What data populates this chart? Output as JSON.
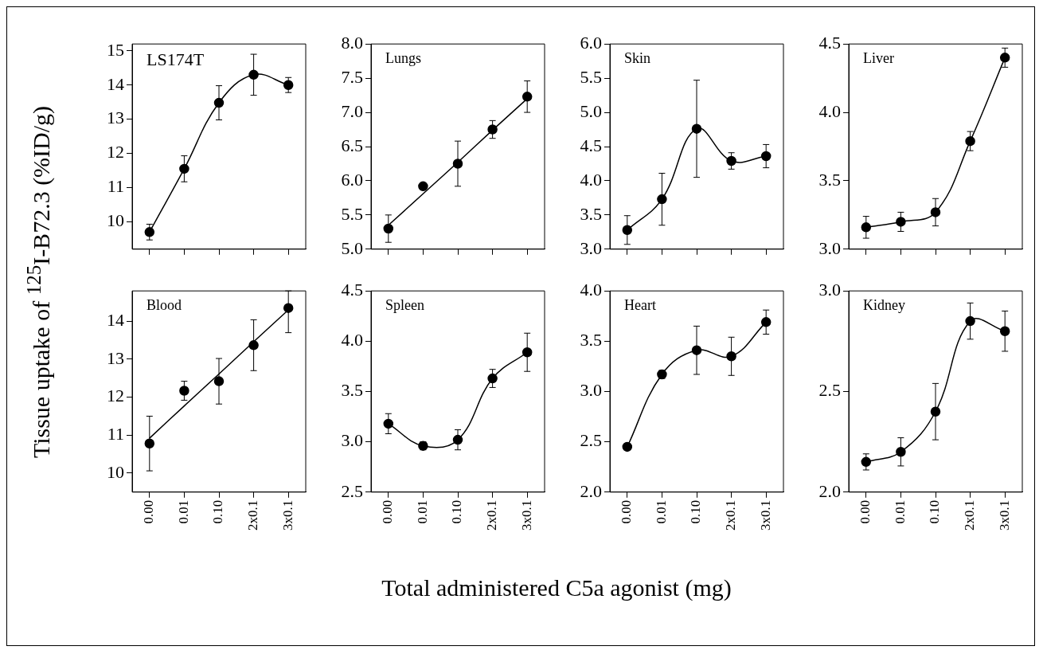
{
  "chart_data": [
    {
      "type": "line",
      "title": "LS174T",
      "ylabel": "Tissue uptake of $^{125}$I-B72.3 (%ID/g)",
      "xlabel": "Total administered C5a agonist (mg)",
      "categories": [
        null,
        null,
        null,
        null,
        null
      ],
      "tick_labels": "y",
      "ylim": [
        9.2,
        15.2
      ],
      "yticks": [
        10,
        11,
        12,
        13,
        14,
        15
      ],
      "series": [
        {
          "type": "line",
          "marker": "circle",
          "color": "#000000",
          "values": [
            9.7,
            11.55,
            13.48,
            14.3,
            14.0
          ],
          "errors": [
            0.23,
            0.38,
            0.5,
            0.6,
            0.22
          ]
        }
      ]
    },
    {
      "type": "line",
      "title": "Lungs",
      "categories": [
        null,
        null,
        null,
        null,
        null
      ],
      "tick_labels": "y",
      "ylim": [
        5,
        8
      ],
      "yticks": [
        {
          "value": 5,
          "label": "5.0"
        },
        {
          "value": 5.5,
          "label": "5.5"
        },
        {
          "value": 6,
          "label": "6.0"
        },
        {
          "value": 6.5,
          "label": "6.5"
        },
        {
          "value": 7,
          "label": "7.0"
        },
        {
          "value": 7.5,
          "label": "7.5"
        },
        {
          "value": 8,
          "label": "8.0"
        }
      ],
      "series": [
        {
          "type": "scatter",
          "marker": "circle",
          "color": "#000000",
          "values": [
            5.3,
            5.92,
            6.25,
            6.75,
            7.23
          ],
          "errors": [
            0.2,
            null,
            0.33,
            0.13,
            0.23
          ]
        },
        {
          "type": "line",
          "marker": "none",
          "color": "#000000",
          "values": [
            5.35,
            5.81,
            6.27,
            6.74,
            7.2
          ]
        }
      ]
    },
    {
      "type": "line",
      "title": "Skin",
      "categories": [
        null,
        null,
        null,
        null,
        null
      ],
      "tick_labels": "y",
      "ylim": [
        3,
        6
      ],
      "yticks": [
        {
          "value": 3,
          "label": "3.0"
        },
        {
          "value": 3.5,
          "label": "3.5"
        },
        {
          "value": 4,
          "label": "4.0"
        },
        {
          "value": 4.5,
          "label": "4.5"
        },
        {
          "value": 5,
          "label": "5.0"
        },
        {
          "value": 5.5,
          "label": "5.5"
        },
        {
          "value": 6,
          "label": "6.0"
        }
      ],
      "series": [
        {
          "type": "line",
          "marker": "circle",
          "color": "#000000",
          "values": [
            3.28,
            3.73,
            4.76,
            4.29,
            4.36
          ],
          "errors": [
            0.21,
            0.38,
            0.71,
            0.12,
            0.17
          ]
        }
      ]
    },
    {
      "type": "line",
      "title": "Liver",
      "categories": [
        null,
        null,
        null,
        null,
        null
      ],
      "tick_labels": "y",
      "ylim": [
        3,
        4.5
      ],
      "yticks": [
        {
          "value": 3,
          "label": "3.0"
        },
        {
          "value": 3.5,
          "label": "3.5"
        },
        {
          "value": 4,
          "label": "4.0"
        },
        {
          "value": 4.5,
          "label": "4.5"
        }
      ],
      "series": [
        {
          "type": "line",
          "marker": "circle",
          "color": "#000000",
          "values": [
            3.16,
            3.2,
            3.27,
            3.79,
            4.4
          ],
          "errors": [
            0.08,
            0.07,
            0.1,
            0.07,
            0.07
          ]
        }
      ]
    },
    {
      "type": "line",
      "title": "Blood",
      "categories": [
        "0.00",
        "0.01",
        "0.10",
        "2x0.1",
        "3x0.1"
      ],
      "ylim": [
        9.5,
        14.8
      ],
      "yticks": [
        10,
        11,
        12,
        13,
        14
      ],
      "series": [
        {
          "type": "scatter",
          "marker": "circle",
          "color": "#000000",
          "values": [
            10.78,
            12.17,
            12.42,
            13.37,
            14.35
          ],
          "errors": [
            0.72,
            0.25,
            0.6,
            0.67,
            [
              13.7,
              14.8
            ]
          ]
        },
        {
          "type": "line",
          "marker": "none",
          "color": "#000000",
          "values": [
            10.92,
            11.77,
            12.61,
            13.46,
            14.3
          ]
        }
      ]
    },
    {
      "type": "line",
      "title": "Spleen",
      "categories": [
        "0.00",
        "0.01",
        "0.10",
        "2x0.1",
        "3x0.1"
      ],
      "ylim": [
        2.5,
        4.5
      ],
      "yticks": [
        {
          "value": 2.5,
          "label": "2.5"
        },
        {
          "value": 3,
          "label": "3.0"
        },
        {
          "value": 3.5,
          "label": "3.5"
        },
        {
          "value": 4,
          "label": "4.0"
        },
        {
          "value": 4.5,
          "label": "4.5"
        }
      ],
      "series": [
        {
          "type": "line",
          "marker": "circle",
          "color": "#000000",
          "values": [
            3.18,
            2.96,
            3.02,
            3.63,
            3.89
          ],
          "errors": [
            0.1,
            0.04,
            0.1,
            0.09,
            0.19
          ]
        }
      ]
    },
    {
      "type": "line",
      "title": "Heart",
      "categories": [
        "0.00",
        "0.01",
        "0.10",
        "2x0.1",
        "3x0.1"
      ],
      "ylim": [
        2,
        4
      ],
      "yticks": [
        {
          "value": 2,
          "label": "2.0"
        },
        {
          "value": 2.5,
          "label": "2.5"
        },
        {
          "value": 3,
          "label": "3.0"
        },
        {
          "value": 3.5,
          "label": "3.5"
        },
        {
          "value": 4,
          "label": "4.0"
        }
      ],
      "series": [
        {
          "type": "line",
          "marker": "circle",
          "color": "#000000",
          "values": [
            2.45,
            3.17,
            3.41,
            3.35,
            3.69
          ],
          "errors": [
            null,
            0.04,
            0.24,
            0.19,
            0.12
          ]
        }
      ]
    },
    {
      "type": "line",
      "title": "Kidney",
      "categories": [
        "0.00",
        "0.01",
        "0.10",
        "2x0.1",
        "3x0.1"
      ],
      "ylim": [
        2,
        3
      ],
      "yticks": [
        {
          "value": 2,
          "label": "2.0"
        },
        {
          "value": 2.5,
          "label": "2.5"
        },
        {
          "value": 3,
          "label": "3.0"
        }
      ],
      "series": [
        {
          "type": "line",
          "marker": "circle",
          "color": "#000000",
          "values": [
            2.15,
            2.2,
            2.4,
            2.85,
            2.8
          ],
          "errors": [
            0.04,
            0.07,
            0.14,
            0.09,
            0.1
          ]
        }
      ]
    }
  ]
}
